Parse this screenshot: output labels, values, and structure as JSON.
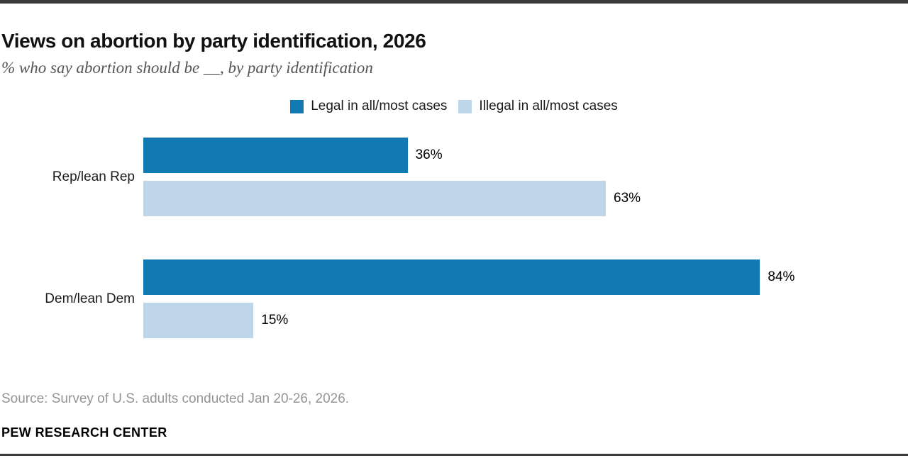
{
  "header": {
    "title": "Views on abortion by party identification, 2026",
    "subtitle": "% who say abortion should be __, by party identification"
  },
  "legend": [
    {
      "label": "Legal in all/most cases",
      "color": "#1379b2"
    },
    {
      "label": "Illegal in all/most cases",
      "color": "#bfd6ea"
    }
  ],
  "chart_data": {
    "type": "bar",
    "orientation": "horizontal",
    "title": "Views on abortion by party identification, 2026",
    "subtitle": "% who say abortion should be __, by party identification",
    "categories": [
      "Rep/lean Rep",
      "Dem/lean Dem"
    ],
    "series": [
      {
        "name": "Legal in all/most cases",
        "color": "#1379b2",
        "values": [
          36,
          84
        ]
      },
      {
        "name": "Illegal in all/most cases",
        "color": "#bfd6ea",
        "values": [
          63,
          15
        ]
      }
    ],
    "value_suffix": "%",
    "xlim": [
      0,
      100
    ],
    "grid": false,
    "legend_position": "top"
  },
  "footer": {
    "source": "Source: Survey of U.S. adults conducted Jan 20-26, 2026.",
    "brand": "PEW RESEARCH CENTER"
  }
}
